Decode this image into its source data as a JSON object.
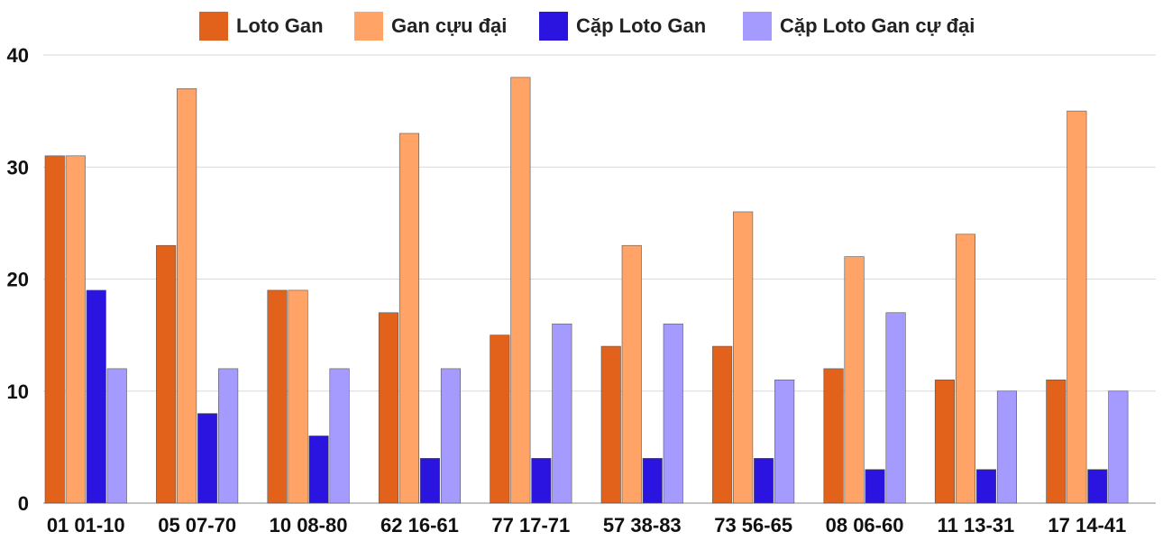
{
  "chart_data": {
    "type": "bar",
    "title": "",
    "xlabel": "",
    "ylabel": "",
    "ylim": [
      0,
      40
    ],
    "yticks": [
      0,
      10,
      20,
      30,
      40
    ],
    "grid": true,
    "legend_position": "top",
    "categories": [
      "01 01-10",
      "05 07-70",
      "10 08-80",
      "62 16-61",
      "77 17-71",
      "57 38-83",
      "73 56-65",
      "08 06-60",
      "11 13-31",
      "17 14-41"
    ],
    "series": [
      {
        "name": "Loto Gan",
        "color": "#e2621b",
        "values": [
          31,
          23,
          19,
          17,
          15,
          14,
          14,
          12,
          11,
          11
        ]
      },
      {
        "name": "Gan cựu đại",
        "color": "#ffa466",
        "values": [
          31,
          37,
          19,
          33,
          38,
          23,
          26,
          22,
          24,
          35
        ]
      },
      {
        "name": "Cặp Loto Gan",
        "color": "#2b14e0",
        "values": [
          19,
          8,
          6,
          4,
          4,
          4,
          4,
          3,
          3,
          3
        ]
      },
      {
        "name": "Cặp Loto Gan cự đại",
        "color": "#a59bff",
        "values": [
          12,
          12,
          12,
          12,
          16,
          16,
          11,
          17,
          10,
          10
        ]
      }
    ]
  }
}
